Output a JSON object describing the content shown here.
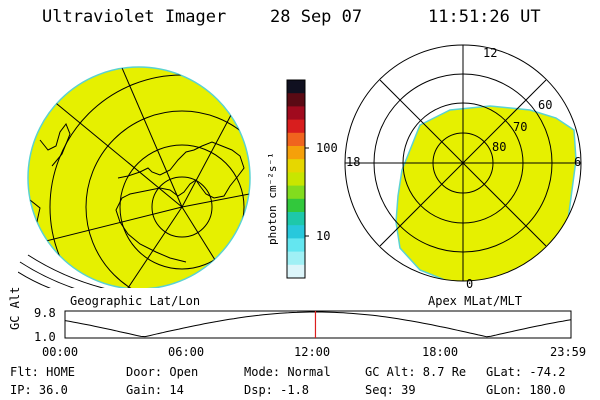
{
  "header": {
    "instrument": "Ultraviolet Imager",
    "date": "28 Sep 07",
    "time": "11:51:26 UT"
  },
  "colorbar": {
    "unit_label": "photon cm⁻²s⁻¹",
    "tick_labels": [
      "100",
      "10"
    ],
    "colors": [
      "#101020",
      "#5a0a14",
      "#a00a1e",
      "#d81e1e",
      "#f0641e",
      "#f5a00a",
      "#e6d700",
      "#c8e600",
      "#82dc1e",
      "#32c83c",
      "#1ec8aa",
      "#28c8dc",
      "#64e6f0",
      "#a0f0f5",
      "#dcf5fa"
    ]
  },
  "left_panel": {
    "label": "Geographic Lat/Lon",
    "fill_color": "#e6f000"
  },
  "right_panel": {
    "label": "Apex MLat/MLT",
    "fill_color": "#e6f000",
    "mlt_labels": [
      "12",
      "18",
      "6",
      "0"
    ],
    "mlat_labels": [
      "60",
      "70",
      "80"
    ]
  },
  "timeline": {
    "axis_label": "GC Alt",
    "y_ticks": [
      "9.8",
      "1.0"
    ],
    "x_ticks": [
      "00:00",
      "06:00",
      "12:00",
      "18:00",
      "23:59"
    ],
    "current_fraction": 0.495
  },
  "info": {
    "flt": "Flt: HOME",
    "ip": "IP: 36.0",
    "door": "Door: Open",
    "gain": "Gain: 14",
    "mode": "Mode: Normal",
    "dsp": "Dsp:    -1.8",
    "gcalt": "GC Alt: 8.7 Re",
    "seq": "Seq: 39",
    "glat": "GLat: -74.2",
    "glon": "GLon: 180.0"
  }
}
